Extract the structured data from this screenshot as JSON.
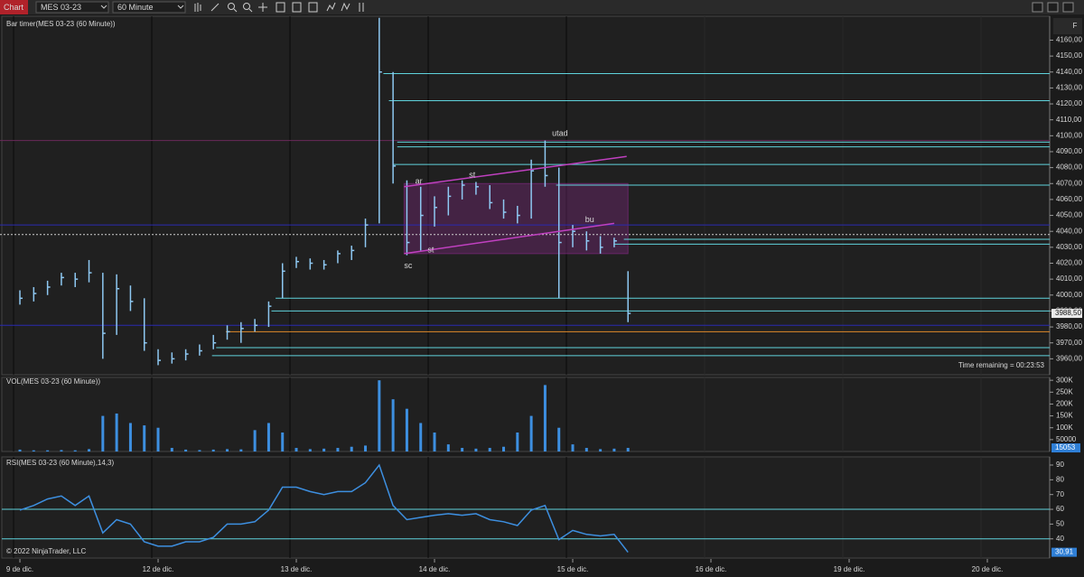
{
  "toolbar": {
    "tab": "Chart",
    "instrument": "MES 03-23",
    "interval": "60 Minute",
    "side_button": "F"
  },
  "time_axis": {
    "xlim": [
      -0.144,
      7.451
    ],
    "ticks": [
      {
        "value": 0,
        "label": "9 de dic."
      },
      {
        "value": 1,
        "label": "12 de dic."
      },
      {
        "value": 2,
        "label": "13 de dic."
      },
      {
        "value": 3,
        "label": "14 de dic."
      },
      {
        "value": 4,
        "label": "15 de dic."
      },
      {
        "value": 5,
        "label": "16 de dic."
      },
      {
        "value": 6,
        "label": "19 de dic."
      },
      {
        "value": 7,
        "label": "20 de dic."
      }
    ]
  },
  "price_panel": {
    "label": "Bar timer(MES 03-23 (60 Minute))",
    "timer": "Time remaining = 00:23:53",
    "ylim": [
      3950,
      4175
    ],
    "yticks": [
      {
        "value": 3960,
        "label": "3960,00"
      },
      {
        "value": 3970,
        "label": "3970,00"
      },
      {
        "value": 3980,
        "label": "3980,00"
      },
      {
        "value": 3990,
        "label": "3990,00"
      },
      {
        "value": 4000,
        "label": "4000,00"
      },
      {
        "value": 4010,
        "label": "4010,00"
      },
      {
        "value": 4020,
        "label": "4020,00"
      },
      {
        "value": 4030,
        "label": "4030,00"
      },
      {
        "value": 4040,
        "label": "4040,00"
      },
      {
        "value": 4050,
        "label": "4050,00"
      },
      {
        "value": 4060,
        "label": "4060,00"
      },
      {
        "value": 4070,
        "label": "4070,00"
      },
      {
        "value": 4080,
        "label": "4080,00"
      },
      {
        "value": 4090,
        "label": "4090,00"
      },
      {
        "value": 4100,
        "label": "4100,00"
      },
      {
        "value": 4110,
        "label": "4110,00"
      },
      {
        "value": 4120,
        "label": "4120,00"
      },
      {
        "value": 4130,
        "label": "4130,00"
      },
      {
        "value": 4140,
        "label": "4140,00"
      },
      {
        "value": 4150,
        "label": "4150,00"
      },
      {
        "value": 4160,
        "label": "4160,00"
      }
    ],
    "bar_color": "#8ec8f2",
    "x": [
      0,
      0.1,
      0.2,
      0.3,
      0.4,
      0.5,
      0.6,
      0.7,
      0.8,
      0.9,
      1,
      1.1,
      1.2,
      1.3,
      1.4,
      1.5,
      1.6,
      1.7,
      1.8,
      1.9,
      2,
      2.1,
      2.2,
      2.3,
      2.4,
      2.5,
      2.6,
      2.7,
      2.8,
      2.9,
      3,
      3.1,
      3.2,
      3.3,
      3.4,
      3.5,
      3.6,
      3.7,
      3.8,
      3.9,
      4,
      4.1,
      4.2,
      4.3,
      4.4
    ],
    "high": [
      4003,
      4005,
      4009,
      4014,
      4014,
      4022,
      4014,
      4013,
      4006,
      3998,
      3966,
      3964,
      3966,
      3969,
      3975,
      3981,
      3983,
      3985,
      3996,
      4020,
      4024,
      4023,
      4022,
      4028,
      4031,
      4048,
      4174,
      4140,
      4072,
      4068,
      4062,
      4068,
      4072,
      4071,
      4069,
      4060,
      4056,
      4085,
      4097,
      4080,
      4044,
      4040,
      4037,
      4036,
      4015
    ],
    "low": [
      3994,
      3996,
      4000,
      4006,
      4005,
      4008,
      3960,
      3975,
      3990,
      3965,
      3956,
      3957,
      3959,
      3962,
      3966,
      3972,
      3970,
      3977,
      3980,
      3998,
      4017,
      4016,
      4016,
      4020,
      4022,
      4030,
      4045,
      4070,
      4025,
      4028,
      4043,
      4050,
      4060,
      4063,
      4054,
      4048,
      4045,
      4048,
      4068,
      3998,
      4030,
      4028,
      4026,
      4030,
      3983
    ],
    "close": [
      3998,
      4001,
      4005,
      4011,
      4010,
      4014,
      3976,
      4004,
      3996,
      3970,
      3959,
      3960,
      3963,
      3965,
      3970,
      3977,
      3979,
      3981,
      3993,
      4015,
      4021,
      4020,
      4019,
      4026,
      4028,
      4044,
      4140,
      4081,
      4033,
      4050,
      4055,
      4062,
      4069,
      4068,
      4058,
      4052,
      4050,
      4078,
      4075,
      4033,
      4040,
      4034,
      4030,
      4034,
      3988.5
    ],
    "last_price": {
      "value": 3988.5,
      "label": "3988,50"
    },
    "levels": [
      {
        "value": 4139,
        "start": 2.63,
        "color": "#5fd3dc"
      },
      {
        "value": 4122,
        "start": 2.67,
        "color": "#5fd3dc"
      },
      {
        "value": 4096,
        "start": 2.73,
        "color": "#5fd3dc"
      },
      {
        "value": 4093,
        "start": 2.73,
        "color": "#5fd3dc"
      },
      {
        "value": 4082,
        "start": 2.7,
        "color": "#5fd3dc"
      },
      {
        "value": 4069,
        "start": 3.88,
        "color": "#5fd3dc"
      },
      {
        "value": 4035,
        "start": 4.37,
        "color": "#5fd3dc"
      },
      {
        "value": 4032,
        "start": 4.3,
        "color": "#5fd3dc"
      },
      {
        "value": 3998,
        "start": 1.85,
        "color": "#5fd3dc"
      },
      {
        "value": 3990,
        "start": 1.82,
        "color": "#5fd3dc"
      },
      {
        "value": 3977,
        "start": 1.49,
        "color": "#e08a2a"
      },
      {
        "value": 3967,
        "start": 1.42,
        "color": "#5fd3dc"
      },
      {
        "value": 3962,
        "start": 1.39,
        "color": "#5fd3dc"
      },
      {
        "value": 4097,
        "start": -0.144,
        "color": "#6a2a5a"
      },
      {
        "value": 4044,
        "start": -0.144,
        "color": "#2a2ab0"
      },
      {
        "value": 3981,
        "start": -0.144,
        "color": "#2a2ab0"
      },
      {
        "value": 4038,
        "start": -0.144,
        "color": "#d0d0d0",
        "style": "dashed"
      }
    ],
    "range_box": {
      "x": [
        2.78,
        4.4
      ],
      "top": 4070,
      "bottom": 4026,
      "color": "#8a2a8a"
    },
    "channel": [
      {
        "x": [
          2.78,
          4.39
        ],
        "values": [
          4068,
          4087
        ]
      },
      {
        "x": [
          2.78,
          4.3
        ],
        "values": [
          4026,
          4045
        ]
      }
    ],
    "channel_color": "#c040c0",
    "annotations": [
      {
        "text": "sc",
        "x": 2.78,
        "value": 4016
      },
      {
        "text": "ar",
        "x": 2.86,
        "value": 4069
      },
      {
        "text": "st",
        "x": 3.25,
        "value": 4073
      },
      {
        "text": "st",
        "x": 2.95,
        "value": 4026
      },
      {
        "text": "utad",
        "x": 3.85,
        "value": 4099
      },
      {
        "text": "bu",
        "x": 4.09,
        "value": 4045
      }
    ]
  },
  "volume_panel": {
    "label": "VOL(MES 03-23 (60 Minute))",
    "ylim": [
      0,
      312000
    ],
    "color": "#3d8fe0",
    "yticks": [
      50000,
      {
        "value": 100000,
        "label": "100K"
      },
      {
        "value": 150000,
        "label": "150K"
      },
      {
        "value": 200000,
        "label": "200K"
      },
      {
        "value": 250000,
        "label": "250K"
      },
      {
        "value": 300000,
        "label": "300K"
      }
    ],
    "values": [
      8000,
      5000,
      5000,
      6000,
      5000,
      10000,
      150000,
      160000,
      120000,
      110000,
      100000,
      15000,
      8000,
      6000,
      8000,
      10000,
      9000,
      90000,
      120000,
      80000,
      15000,
      10000,
      12000,
      15000,
      20000,
      25000,
      300000,
      220000,
      180000,
      120000,
      80000,
      30000,
      15000,
      12000,
      15000,
      20000,
      80000,
      150000,
      280000,
      100000,
      30000,
      15000,
      10000,
      12000,
      15053
    ],
    "last": 15053
  },
  "rsi_panel": {
    "label": "RSI(MES 03-23 (60 Minute),14,3)",
    "ylim": [
      27,
      95.5
    ],
    "color": "#3d8fe0",
    "level_color": "#5fd3dc",
    "yticks": [
      40,
      50,
      60,
      70,
      80,
      90
    ],
    "levels": [
      60,
      40
    ],
    "values": [
      59.5,
      62.6,
      67,
      69,
      62.6,
      69,
      44,
      53,
      50,
      38,
      35,
      35,
      38,
      38,
      41,
      50,
      50,
      51.6,
      59.5,
      75,
      75,
      72,
      70,
      72,
      72,
      78,
      90,
      62.6,
      53,
      54.5,
      56,
      57,
      56,
      57,
      53,
      51.6,
      49,
      59.5,
      62.6,
      39.5,
      45.7,
      43,
      42,
      43,
      30.91
    ],
    "last": {
      "value": 30.91,
      "label": "30,91"
    }
  },
  "copyright": "© 2022 NinjaTrader, LLC"
}
